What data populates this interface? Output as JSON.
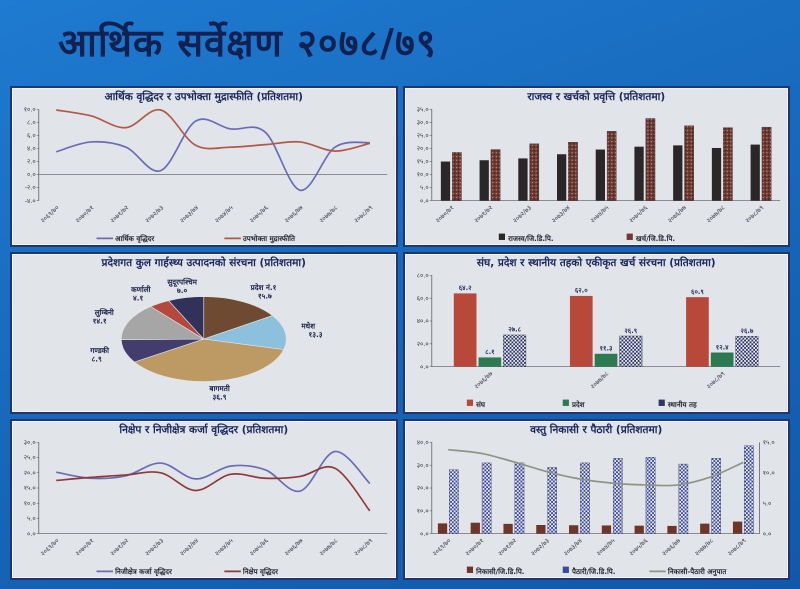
{
  "page": {
    "title": "आर्थिक सर्वेक्षण २०७८/७९",
    "background_color": "#1767ba",
    "panel_color": "#e1e4e8",
    "title_color": "#132052"
  },
  "chart_data": [
    {
      "id": "growth-inflation",
      "type": "line",
      "title": "आर्थिक वृद्धिदर र उपभोक्ता मुद्रास्फीति (प्रतिशतमा)",
      "categories": [
        "२०६९/७०",
        "२०७०/७१",
        "२०७१/७२",
        "२०७२/७३",
        "२०७३/७४",
        "२०७४/७५",
        "२०७५/७६",
        "२०७६/७७",
        "२०७७/७८",
        "२०७८/७९"
      ],
      "ylim": [
        -4,
        10
      ],
      "yticks": [
        {
          "v": 10,
          "label": "१०.०"
        },
        {
          "v": 8,
          "label": "८.०"
        },
        {
          "v": 6,
          "label": "६.०"
        },
        {
          "v": 4,
          "label": "४.०"
        },
        {
          "v": 2,
          "label": "२.०"
        },
        {
          "v": 0,
          "label": "०.०"
        },
        {
          "v": -2,
          "label": "-२.०"
        },
        {
          "v": -4,
          "label": "-४.०"
        }
      ],
      "series": [
        {
          "name": "आर्थिक वृद्धिदर",
          "color": "#6a6cb5",
          "values": [
            3.5,
            5.0,
            4.2,
            0.6,
            8.2,
            7.0,
            6.5,
            -2.4,
            4.2,
            4.9
          ]
        },
        {
          "name": "उपभोक्ता मुद्रास्फीति",
          "color": "#b05a46",
          "values": [
            9.9,
            9.0,
            7.2,
            9.9,
            4.5,
            4.2,
            4.6,
            5.0,
            3.6,
            4.8
          ]
        }
      ]
    },
    {
      "id": "revenue-expenditure",
      "type": "bar",
      "title": "राजस्व र खर्चको प्रवृत्ति (प्रतिशतमा)",
      "categories": [
        "२०७०/७१",
        "२०७१/७२",
        "२०७२/७३",
        "२०७३/७४",
        "२०७४/७५",
        "२०७५/७६",
        "२०७६/७७",
        "२०७७/७८",
        "२०७८/७९"
      ],
      "ylim": [
        0,
        35
      ],
      "yticks": [
        {
          "v": 35,
          "label": "३५.०"
        },
        {
          "v": 30,
          "label": "३०.०"
        },
        {
          "v": 25,
          "label": "२५.०"
        },
        {
          "v": 20,
          "label": "२०.०"
        },
        {
          "v": 15,
          "label": "१५.०"
        },
        {
          "v": 10,
          "label": "१०.०"
        },
        {
          "v": 5,
          "label": "५.०"
        },
        {
          "v": 0,
          "label": "०.०"
        }
      ],
      "series": [
        {
          "name": "राजस्व/जि.डि.पि.",
          "color": "#2b2628",
          "values": [
            15.0,
            15.5,
            16.2,
            17.8,
            19.6,
            20.7,
            21.2,
            20.2,
            21.5
          ]
        },
        {
          "name": "खर्च/जि.डि.पि.",
          "color": "#6f3a33",
          "pattern": "speckle",
          "values": [
            18.5,
            19.6,
            21.8,
            22.4,
            26.6,
            31.5,
            28.7,
            28.0,
            28.2
          ]
        }
      ]
    },
    {
      "id": "provincial-gdp",
      "type": "pie",
      "title": "प्रदेशगत कुल गार्हस्थ्य उत्पादनको संरचना (प्रतिशतमा)",
      "slices": [
        {
          "name": "प्रदेश नं.१",
          "value": 15.7,
          "label": "१५.७",
          "color": "#6e4a33"
        },
        {
          "name": "मधेश",
          "value": 13.3,
          "label": "१३.३",
          "color": "#8cc0dd"
        },
        {
          "name": "बागमती",
          "value": 36.9,
          "label": "३६.९",
          "color": "#bd9a63"
        },
        {
          "name": "गण्डकी",
          "value": 8.9,
          "label": "८.९",
          "color": "#433d6e"
        },
        {
          "name": "लुम्बिनी",
          "value": 14.1,
          "label": "१४.१",
          "color": "#a6a6a6"
        },
        {
          "name": "कर्णाली",
          "value": 4.1,
          "label": "४.१",
          "color": "#b5473c"
        },
        {
          "name": "सुदूरपश्चिम",
          "value": 7.0,
          "label": "७.०",
          "color": "#31315a"
        }
      ]
    },
    {
      "id": "consolidated-expenditure",
      "type": "bar",
      "title": "संघ, प्रदेश र स्थानीय तहको एकीकृत खर्च संरचना (प्रतिशतमा)",
      "categories": [
        "२०७६/७७",
        "२०७७/७८",
        "२०७८/७९"
      ],
      "ylim": [
        0,
        80
      ],
      "yticks": [
        {
          "v": 80,
          "label": "८०.०"
        },
        {
          "v": 60,
          "label": "६०.०"
        },
        {
          "v": 40,
          "label": "४०.०"
        },
        {
          "v": 20,
          "label": "२०.०"
        },
        {
          "v": 0,
          "label": "०.०"
        }
      ],
      "show_value_labels": true,
      "series": [
        {
          "name": "संघ",
          "color": "#b8493a",
          "values": [
            64.2,
            62.0,
            60.9
          ],
          "value_labels": [
            "६४.२",
            "६२.०",
            "६०.९"
          ]
        },
        {
          "name": "प्रदेश",
          "color": "#2e7a50",
          "values": [
            8.1,
            11.3,
            12.4
          ],
          "value_labels": [
            "८.१",
            "११.३",
            "१२.४"
          ]
        },
        {
          "name": "स्थानीय तह",
          "color": "#2f3566",
          "pattern": "checker",
          "values": [
            27.8,
            26.9,
            26.7
          ],
          "value_labels": [
            "२७.८",
            "२६.९",
            "२६.७"
          ]
        }
      ]
    },
    {
      "id": "deposit-credit",
      "type": "line",
      "title": "निक्षेप र निजीक्षेत्र कर्जा वृद्धिदर (प्रतिशतमा)",
      "categories": [
        "२०६९/७०",
        "२०७०/७१",
        "२०७१/७२",
        "२०७२/७३",
        "२०७३/७४",
        "२०७४/७५",
        "२०७५/७६",
        "२०७६/७७",
        "२०७७/७८",
        "२०७८/७९"
      ],
      "ylim": [
        0,
        30
      ],
      "yticks": [
        {
          "v": 30,
          "label": "३०.०"
        },
        {
          "v": 25,
          "label": "२५.०"
        },
        {
          "v": 20,
          "label": "२०.०"
        },
        {
          "v": 15,
          "label": "१५.०"
        },
        {
          "v": 10,
          "label": "१०.०"
        },
        {
          "v": 5,
          "label": "५.०"
        },
        {
          "v": 0,
          "label": "०.०"
        }
      ],
      "series": [
        {
          "name": "निजीक्षेत्र कर्जा वृद्धिदर",
          "color": "#6a6cb5",
          "values": [
            20.2,
            18.2,
            19.0,
            23.2,
            18.0,
            22.2,
            21.0,
            14.0,
            27.0,
            16.5
          ]
        },
        {
          "name": "निक्षेप वृद्धिदर",
          "color": "#8e3a38",
          "values": [
            17.5,
            18.5,
            19.3,
            20.0,
            14.2,
            19.5,
            18.2,
            18.8,
            21.5,
            7.5
          ]
        }
      ]
    },
    {
      "id": "export-import",
      "type": "combo",
      "title": "वस्तु निकासी र पैठारी (प्रतिशतमा)",
      "categories": [
        "२०६९/७०",
        "२०७०/७१",
        "२०७१/७२",
        "२०७२/७३",
        "२०७३/७४",
        "२०७४/७५",
        "२०७५/७६",
        "२०७६/७७",
        "२०७७/७८",
        "२०७८/७९"
      ],
      "ylim": [
        0,
        40
      ],
      "yticks": [
        {
          "v": 40,
          "label": "४०.०"
        },
        {
          "v": 30,
          "label": "३०.०"
        },
        {
          "v": 20,
          "label": "२०.०"
        },
        {
          "v": 10,
          "label": "१०.०"
        },
        {
          "v": 0,
          "label": "०.०"
        }
      ],
      "y2lim": [
        0,
        15
      ],
      "y2ticks": [
        {
          "v": 15,
          "label": "१५.०"
        },
        {
          "v": 10,
          "label": "१०.०"
        },
        {
          "v": 5,
          "label": "५.०"
        },
        {
          "v": 0,
          "label": "०.०"
        }
      ],
      "series": [
        {
          "name": "निकासी/जि.डि.पि.",
          "type": "bar",
          "color": "#6e352a",
          "values": [
            4.5,
            4.8,
            4.3,
            3.8,
            3.7,
            3.6,
            3.5,
            3.4,
            4.4,
            5.3
          ]
        },
        {
          "name": "पैठारी/जि.डि.पि.",
          "type": "bar",
          "color": "#39499e",
          "pattern": "checker",
          "values": [
            28,
            31,
            31,
            29,
            31,
            33,
            33.5,
            30.5,
            33,
            38.5
          ]
        },
        {
          "name": "निकासी-पैठारी अनुपात",
          "type": "line",
          "axis": "y2",
          "color": "#8f9486",
          "values": [
            13.8,
            13.2,
            11.8,
            10.2,
            9.0,
            8.3,
            8.0,
            8.0,
            9.3,
            11.7
          ]
        }
      ]
    }
  ]
}
